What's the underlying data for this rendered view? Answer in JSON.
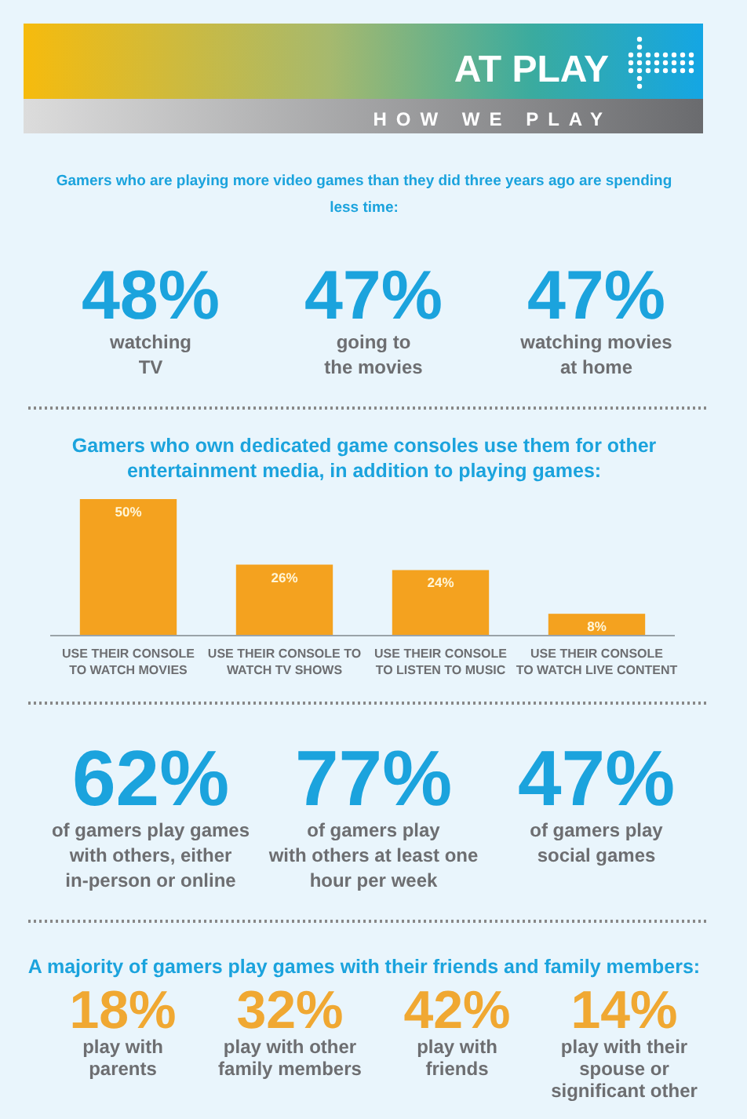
{
  "chart_data": [
    {
      "type": "other",
      "title": "AT PLAY",
      "subtitle": "HOW WE PLAY"
    },
    {
      "type": "other",
      "title": "Gamers who are playing more video games than they did three years ago are spending\nless time:",
      "color": "#1ba3dd",
      "annotations": [
        "48%",
        "watching\nTV",
        "47%",
        "going to\nthe movies",
        "47%",
        "watching movies\nat home"
      ]
    },
    {
      "type": "bar",
      "title": "Gamers who own dedicated game consoles use them for other\nentertainment media, in addition to playing games:",
      "categories": [
        "USE THEIR CONSOLE\nTO WATCH MOVIES",
        "USE THEIR CONSOLE TO\nWATCH TV SHOWS",
        "USE THEIR CONSOLE\nTO LISTEN TO MUSIC",
        "USE THEIR CONSOLE\nTO WATCH LIVE CONTENT"
      ],
      "values": [
        50,
        26,
        24,
        8
      ],
      "value_labels": [
        "50%",
        "26%",
        "24%",
        "8%"
      ],
      "color": "#f4a21f"
    },
    {
      "type": "other",
      "color": "#1ba3dd",
      "annotations": [
        "62%",
        "of gamers play games\nwith others, either\nin-person or online",
        "77%",
        "of gamers play\nwith others at least one\nhour per week",
        "47%",
        "of gamers play\nsocial games"
      ]
    },
    {
      "type": "other",
      "title": "A majority of gamers play games with their friends and family members:",
      "color": "#f0a832",
      "annotations": [
        "18%",
        "play with\nparents",
        "32%",
        "play with other\nfamily members",
        "42%",
        "play with\nfriends",
        "14%",
        "play with their\nspouse or\nsignificant other"
      ]
    }
  ]
}
